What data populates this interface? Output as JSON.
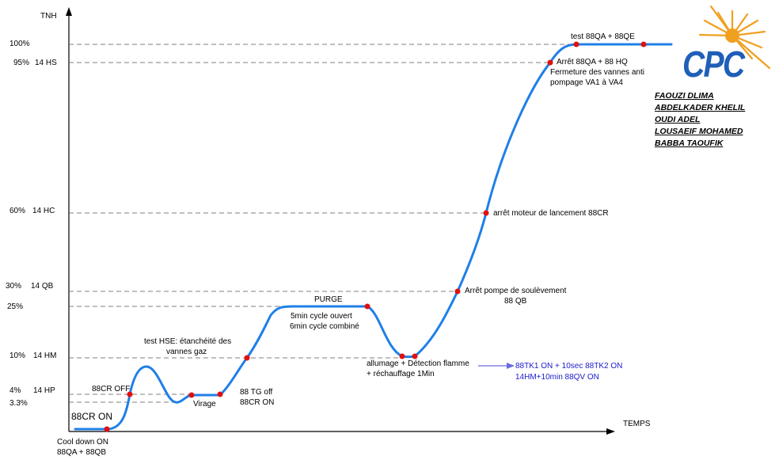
{
  "axes": {
    "y_title": "TNH",
    "x_title": "TEMPS"
  },
  "y_levels": [
    {
      "pct": "100%",
      "code": ""
    },
    {
      "pct": "95%",
      "code": "14 HS"
    },
    {
      "pct": "60%",
      "code": "14 HC"
    },
    {
      "pct": "30%",
      "code": "14 QB"
    },
    {
      "pct": "25%",
      "code": ""
    },
    {
      "pct": "10%",
      "code": "14 HM"
    },
    {
      "pct": "4%",
      "code": "14 HP"
    },
    {
      "pct": "3.3%",
      "code": ""
    }
  ],
  "annotations": {
    "cool_down": [
      "Cool down ON",
      "88QA + 88QB"
    ],
    "cr_on": "88CR ON",
    "cr_off": "88CR OFF",
    "test_hse": [
      "test HSE: étanchéité des",
      "vannes gaz"
    ],
    "virage": "Virage",
    "tg_off": [
      "88 TG off",
      "88CR ON"
    ],
    "purge": "PURGE",
    "cycles": [
      "5min cycle ouvert",
      "6min cycle combiné"
    ],
    "allumage": [
      "allumage + Détection flamme",
      "+ réchauffage 1Min"
    ],
    "tk": [
      "88TK1 ON + 10sec  88TK2 ON",
      "14HM+10min 88QV  ON"
    ],
    "pompe": [
      "Arrêt pompe de soulèvement",
      "88 QB"
    ],
    "moteur": "arrêt moteur de lancement 88CR",
    "arret_qa": [
      "Arrêt 88QA + 88 HQ",
      "Fermeture des vannes anti",
      "pompage  VA1 à VA4"
    ],
    "test_qa": "test 88QA + 88QE"
  },
  "logo": {
    "text": "CPC",
    "color": "#1f5fb8",
    "sun_color": "#f0a020"
  },
  "authors": [
    "FAOUZI DLIMA",
    "ABDELKADER KHELIL",
    "OUDI ADEL",
    "LOUSAEIF MOHAMED",
    "BABBA TAOUFIK"
  ],
  "colors": {
    "curve": "#1f7fe8",
    "points": "#e01010",
    "guides": "#555555",
    "axes": "#000000",
    "arrow": "#6a6ae0"
  }
}
